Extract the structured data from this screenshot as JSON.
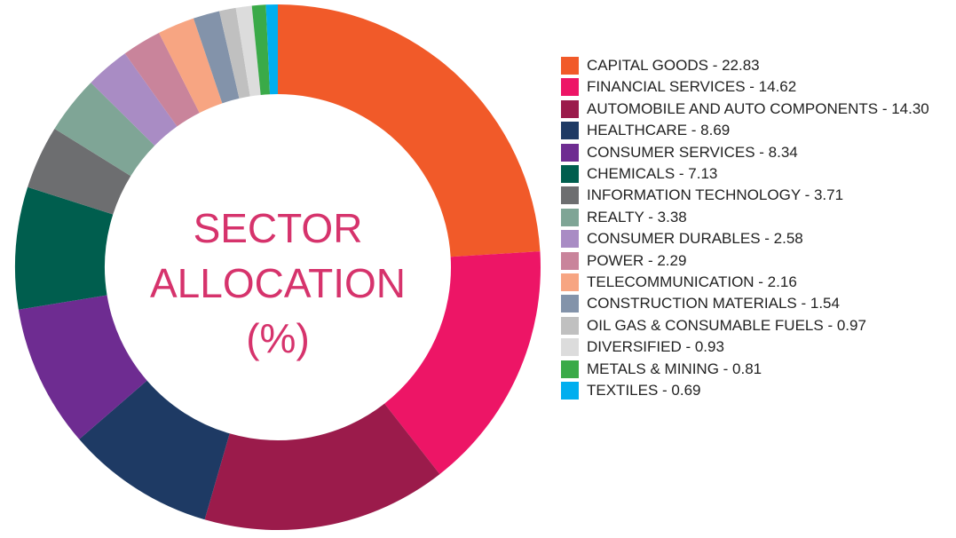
{
  "chart_data": {
    "type": "donut",
    "title": "SECTOR ALLOCATION (%)",
    "categories": [
      "CAPITAL GOODS - 22.83",
      "FINANCIAL SERVICES - 14.62",
      "AUTOMOBILE AND AUTO COMPONENTS - 14.30",
      "HEALTHCARE - 8.69",
      "CONSUMER SERVICES - 8.34",
      "CHEMICALS - 7.13",
      "INFORMATION TECHNOLOGY - 3.71",
      "REALTY - 3.38",
      "CONSUMER DURABLES - 2.58",
      "POWER - 2.29",
      "TELECOMMUNICATION - 2.16",
      "CONSTRUCTION MATERIALS - 1.54",
      "OIL GAS & CONSUMABLE FUELS - 0.97",
      "DIVERSIFIED - 0.93",
      "METALS & MINING - 0.81",
      "TEXTILES - 0.69"
    ],
    "values": [
      22.83,
      14.62,
      14.3,
      8.69,
      8.34,
      7.13,
      3.71,
      3.38,
      2.58,
      2.29,
      2.16,
      1.54,
      0.97,
      0.93,
      0.81,
      0.69
    ],
    "colors": [
      "#f15a29",
      "#ed1566",
      "#9b1b4b",
      "#1e3a64",
      "#6e2c91",
      "#005e4e",
      "#6d6e70",
      "#7fa596",
      "#a98cc4",
      "#c9849b",
      "#f7a582",
      "#8393aa",
      "#c0c0c0",
      "#dcdcdc",
      "#3aaa48",
      "#00aeef"
    ],
    "legend": "right"
  }
}
